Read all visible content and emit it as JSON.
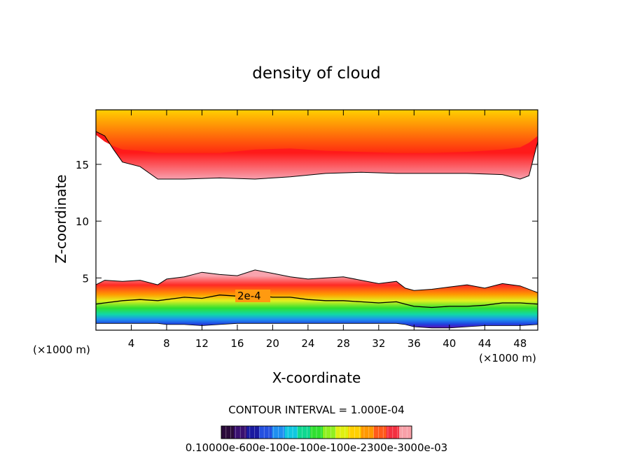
{
  "chart_data": {
    "type": "heatmap",
    "title": "density of cloud",
    "xlabel": "X-coordinate",
    "ylabel": "Z-coordinate",
    "x_unit_left": "(×1000 m)",
    "x_unit_right": "(×1000 m)",
    "xlim": [
      0,
      50
    ],
    "ylim": [
      0.4,
      19.8
    ],
    "xticks": [
      4,
      8,
      12,
      16,
      20,
      24,
      28,
      32,
      36,
      40,
      44,
      48
    ],
    "yticks": [
      5,
      10,
      15
    ],
    "contour_label": "2e-4",
    "contour_interval_text": "CONTOUR INTERVAL = 1.000E-04",
    "colorbar_label_text": "0.10000e-600e-100e-100e-100e-2300e-3000e-03",
    "upper_layer": {
      "x": [
        0,
        1,
        2,
        3,
        5,
        7,
        10,
        14,
        18,
        22,
        26,
        30,
        34,
        38,
        42,
        46,
        48,
        49,
        50
      ],
      "top": [
        19.8,
        19.8,
        19.8,
        19.8,
        19.8,
        19.8,
        19.8,
        19.8,
        19.8,
        19.8,
        19.8,
        19.8,
        19.8,
        19.8,
        19.8,
        19.8,
        19.8,
        19.8,
        19.8
      ],
      "bottom": [
        17.9,
        17.5,
        16.3,
        15.2,
        14.8,
        13.7,
        13.7,
        13.8,
        13.7,
        13.9,
        14.2,
        14.3,
        14.2,
        14.2,
        14.2,
        14.1,
        13.7,
        14.0,
        17.0
      ],
      "core": [
        17.6,
        17.0,
        16.6,
        16.3,
        16.2,
        16.0,
        16.0,
        16.0,
        16.3,
        16.4,
        16.2,
        16.1,
        16.0,
        16.0,
        16.1,
        16.3,
        16.5,
        16.9,
        17.5
      ]
    },
    "lower_layer": {
      "x": [
        0,
        1,
        3,
        5,
        7,
        8,
        10,
        12,
        14,
        16,
        18,
        20,
        22,
        24,
        26,
        28,
        30,
        32,
        34,
        35,
        36,
        38,
        40,
        42,
        44,
        46,
        48,
        50
      ],
      "top": [
        4.4,
        4.8,
        4.7,
        4.8,
        4.4,
        4.9,
        5.1,
        5.5,
        5.3,
        5.2,
        5.7,
        5.4,
        5.1,
        4.9,
        5.0,
        5.1,
        4.8,
        4.5,
        4.7,
        4.1,
        3.9,
        4.0,
        4.2,
        4.4,
        4.1,
        4.5,
        4.3,
        3.7
      ],
      "contour_2e4": [
        2.7,
        2.8,
        3.0,
        3.1,
        3.0,
        3.1,
        3.3,
        3.2,
        3.5,
        3.4,
        3.5,
        3.3,
        3.3,
        3.1,
        3.0,
        3.0,
        2.9,
        2.8,
        2.9,
        2.7,
        2.5,
        2.4,
        2.5,
        2.5,
        2.6,
        2.8,
        2.8,
        2.7
      ],
      "bottom": [
        1.0,
        1.0,
        1.0,
        1.0,
        1.0,
        0.9,
        0.9,
        0.8,
        0.9,
        1.0,
        1.0,
        1.0,
        1.0,
        1.0,
        1.0,
        1.0,
        1.0,
        1.0,
        1.0,
        0.9,
        0.7,
        0.6,
        0.6,
        0.7,
        0.8,
        0.8,
        0.8,
        0.9
      ]
    },
    "colorbar_colors": [
      "#2a0a3a",
      "#3a1070",
      "#1a1aa0",
      "#2450e0",
      "#1e8ff0",
      "#10c8e0",
      "#10d890",
      "#30e030",
      "#90f020",
      "#e0f010",
      "#ffd000",
      "#ff9800",
      "#ff5a1a",
      "#f43040",
      "#f8a0a8"
    ],
    "grid": false,
    "legend": "none"
  }
}
